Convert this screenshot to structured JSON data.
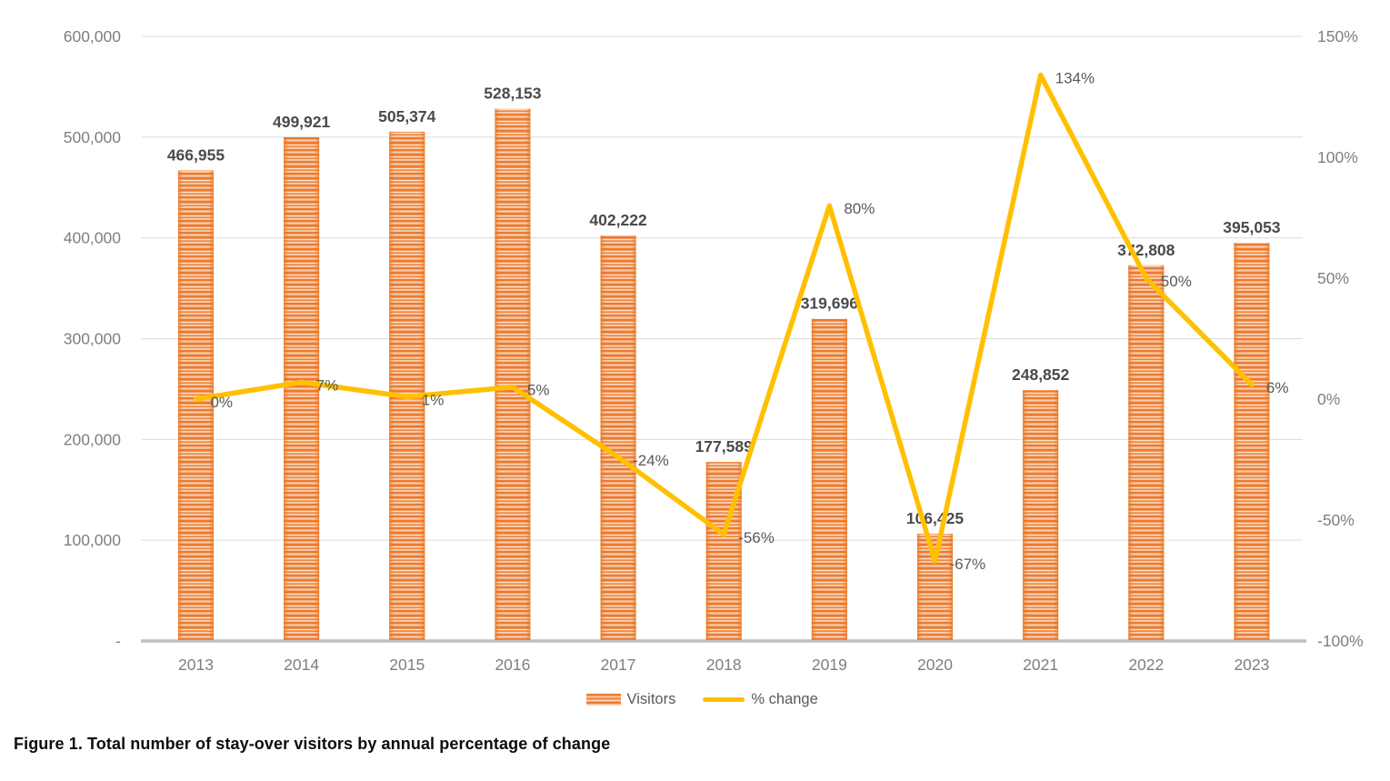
{
  "figure": {
    "caption": "Figure 1. Total number of stay-over visitors by annual percentage of change"
  },
  "legend": {
    "items": [
      {
        "label": "Visitors",
        "swatch": "striped-bar",
        "color": "#ED7D31"
      },
      {
        "label": "% change",
        "swatch": "line",
        "color": "#FFC000"
      }
    ]
  },
  "chart_data": {
    "type": "combo-bar-line",
    "categories": [
      "2013",
      "2014",
      "2015",
      "2016",
      "2017",
      "2018",
      "2019",
      "2020",
      "2021",
      "2022",
      "2023"
    ],
    "series": [
      {
        "name": "Visitors",
        "type": "bar",
        "axis": "left",
        "color": "#ED7D31",
        "values": [
          466955,
          499921,
          505374,
          528153,
          402222,
          177589,
          319696,
          106425,
          248852,
          372808,
          395053
        ],
        "data_labels": [
          "466,955",
          "499,921",
          "505,374",
          "528,153",
          "402,222",
          "177,589",
          "319,696",
          "106,425",
          "248,852",
          "372,808",
          "395,053"
        ]
      },
      {
        "name": "% change",
        "type": "line",
        "axis": "right",
        "color": "#FFC000",
        "values": [
          0,
          7,
          1,
          5,
          -24,
          -56,
          80,
          -67,
          134,
          50,
          6
        ],
        "data_labels": [
          "0%",
          "7%",
          "1%",
          "5%",
          "-24%",
          "-56%",
          "80%",
          "-67%",
          "134%",
          "50%",
          "6%"
        ]
      }
    ],
    "left_axis": {
      "min": 0,
      "max": 600000,
      "tick_step": 100000,
      "tick_labels": [
        "600,000",
        "500,000",
        "400,000",
        "300,000",
        "200,000",
        "100,000",
        "-"
      ]
    },
    "right_axis": {
      "min": -100,
      "max": 150,
      "tick_step": 50,
      "tick_labels": [
        "150%",
        "100%",
        "50%",
        "0%",
        "-50%",
        "-100%"
      ]
    },
    "grid": "horizontal",
    "legend_position": "bottom",
    "title": "",
    "xlabel": "",
    "ylabel": ""
  },
  "colors": {
    "bar_stripe": "#EC7B2F",
    "bar_stripe_light": "#F9E2CE",
    "line": "#FFC000",
    "gridline": "#DCDCDC",
    "axis_line": "#BFBFBF",
    "tick_text": "#7F7F7F",
    "value_label_text": "#4A4A4A",
    "pct_label_text": "#595959"
  }
}
